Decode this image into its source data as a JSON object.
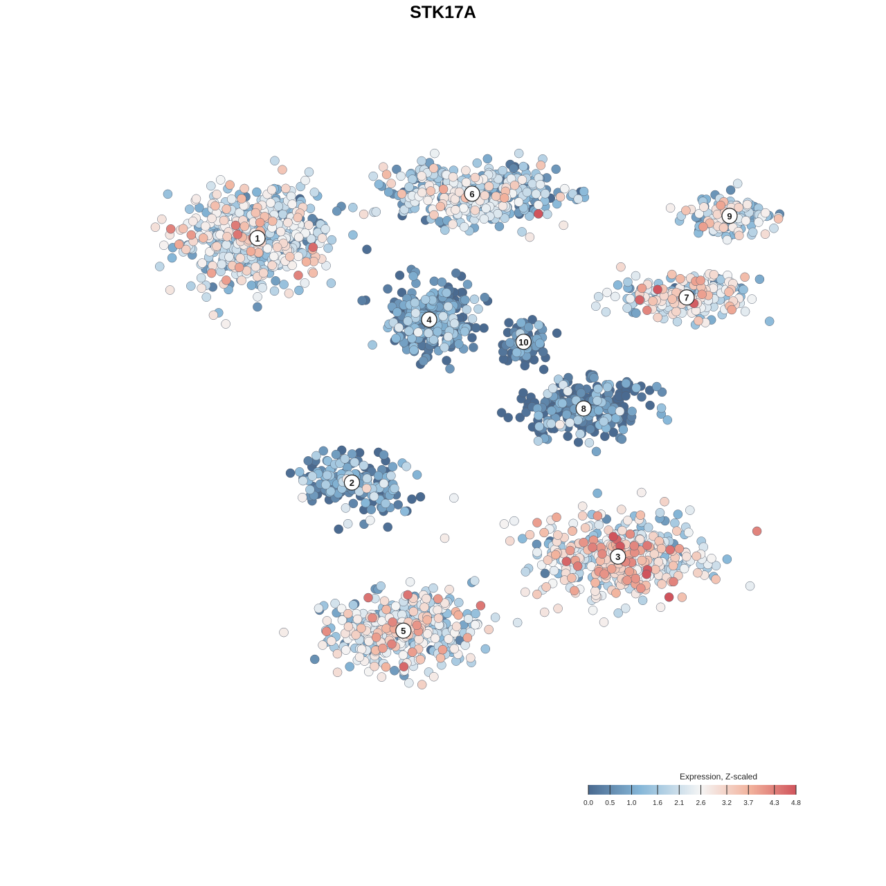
{
  "chart_data": {
    "type": "scatter",
    "title": "STK17A",
    "xlabel": "",
    "ylabel": "",
    "grid": false,
    "axes_visible": false,
    "legend": {
      "title": "Expression, Z-scaled",
      "placement": "bottom-right",
      "ticks": [
        "0.0",
        "0.5",
        "1.0",
        "1.6",
        "2.1",
        "2.6",
        "3.2",
        "3.7",
        "4.3",
        "4.8"
      ],
      "tick_values": [
        0.0,
        0.5,
        1.0,
        1.6,
        2.1,
        2.6,
        3.2,
        3.7,
        4.3,
        4.8
      ],
      "range": [
        0.0,
        4.8
      ]
    },
    "colors": {
      "low": "#4a6a90",
      "mid_low": "#86b7d8",
      "mid": "#f5f5f5",
      "mid_high": "#f2b29c",
      "high": "#d0545c"
    },
    "clusters": [
      {
        "label": "1",
        "x": 0.0,
        "y": 0.0,
        "mean_expression": 2.0
      },
      {
        "label": "2",
        "x": 1.1,
        "y": -3.3,
        "mean_expression": 0.6
      },
      {
        "label": "3",
        "x": 4.2,
        "y": -4.3,
        "mean_expression": 2.6
      },
      {
        "label": "4",
        "x": 2.0,
        "y": -1.1,
        "mean_expression": 0.4
      },
      {
        "label": "5",
        "x": 1.7,
        "y": -5.3,
        "mean_expression": 2.1
      },
      {
        "label": "6",
        "x": 2.5,
        "y": 0.6,
        "mean_expression": 1.6
      },
      {
        "label": "7",
        "x": 5.0,
        "y": -0.8,
        "mean_expression": 2.3
      },
      {
        "label": "8",
        "x": 3.8,
        "y": -2.3,
        "mean_expression": 0.3
      },
      {
        "label": "9",
        "x": 5.5,
        "y": 0.3,
        "mean_expression": 1.8
      },
      {
        "label": "10",
        "x": 3.1,
        "y": -1.4,
        "mean_expression": 0.3
      }
    ]
  }
}
